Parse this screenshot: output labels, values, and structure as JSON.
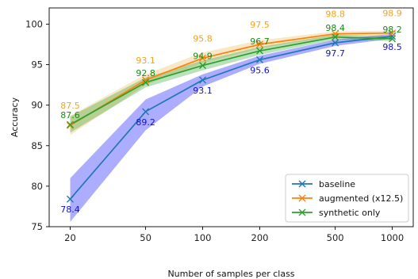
{
  "chart_data": {
    "type": "line",
    "xscale": "log",
    "x": [
      20,
      50,
      100,
      200,
      500,
      1000
    ],
    "xticks": [
      "20",
      "50",
      "100",
      "200",
      "500",
      "1000"
    ],
    "xlabel": "Number of samples per class",
    "ylabel": "Accuracy",
    "ylim": [
      75,
      102
    ],
    "yticks": [
      75,
      80,
      85,
      90,
      95,
      100
    ],
    "grid": false,
    "legend_position": "lower-right",
    "series": [
      {
        "name": "baseline",
        "color": "#1f77b4",
        "band_color": "#0000ff",
        "values": [
          78.4,
          89.2,
          93.1,
          95.6,
          97.7,
          98.5
        ],
        "band_low": [
          75.6,
          86.9,
          92.3,
          95.1,
          97.3,
          98.2
        ],
        "band_high": [
          81.0,
          90.7,
          93.8,
          96.1,
          98.1,
          98.8
        ],
        "labels": [
          "78.4",
          "89.2",
          "93.1",
          "95.6",
          "97.7",
          "98.5"
        ],
        "label_color": "#1111cc",
        "label_side": "below"
      },
      {
        "name": "augmented (x12.5)",
        "color": "#ff7f0e",
        "band_color": "#e8b84a",
        "values": [
          87.5,
          93.1,
          95.8,
          97.5,
          98.8,
          98.9
        ],
        "band_low": [
          86.3,
          92.5,
          95.2,
          97.0,
          98.5,
          98.6
        ],
        "band_high": [
          88.7,
          93.8,
          96.5,
          98.0,
          99.1,
          99.2
        ],
        "labels": [
          "87.5",
          "93.1",
          "95.8",
          "97.5",
          "98.8",
          "98.9"
        ],
        "label_color": "#f5a31a",
        "label_side": "above2"
      },
      {
        "name": "synthetic only",
        "color": "#2ca02c",
        "band_color": "#2ca02c",
        "values": [
          87.6,
          92.8,
          94.9,
          96.7,
          98.4,
          98.2
        ],
        "band_low": [
          86.6,
          92.2,
          94.3,
          96.2,
          98.1,
          97.9
        ],
        "band_high": [
          88.6,
          93.4,
          95.5,
          97.2,
          98.7,
          98.5
        ],
        "labels": [
          "87.6",
          "92.8",
          "94.9",
          "96.7",
          "98.4",
          "98.2"
        ],
        "label_color": "#1a8a1a",
        "label_side": "above"
      }
    ]
  }
}
